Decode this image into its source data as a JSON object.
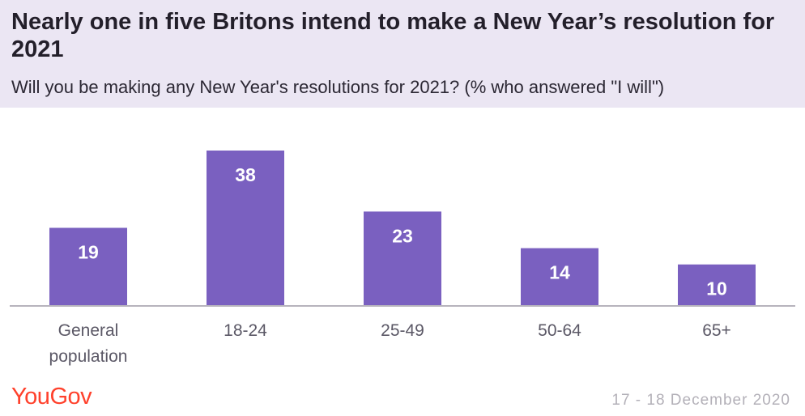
{
  "header": {
    "title": "Nearly one in five Britons intend to make a New Year’s resolution for 2021",
    "subtitle": "Will you be making any New Year's resolutions for 2021? (% who answered \"I  will\")"
  },
  "footer": {
    "logo_text": "YouGov",
    "date": "17 - 18 December 2020"
  },
  "colors": {
    "bar": "#7a60c0",
    "header_bg": "#ebe6f3",
    "logo": "#ff412c"
  },
  "chart_data": {
    "type": "bar",
    "title": "Nearly one in five Britons intend to make a New Year’s resolution for 2021",
    "subtitle": "Will you be making any New Year's resolutions for 2021? (% who answered \"I  will\")",
    "categories": [
      [
        "General",
        "population"
      ],
      [
        "18-24"
      ],
      [
        "25-49"
      ],
      [
        "50-64"
      ],
      [
        "65+"
      ]
    ],
    "values": [
      19,
      38,
      23,
      14,
      10
    ],
    "xlabel": "",
    "ylabel": "",
    "ylim": [
      0,
      38
    ],
    "grid": false,
    "legend": "none"
  }
}
